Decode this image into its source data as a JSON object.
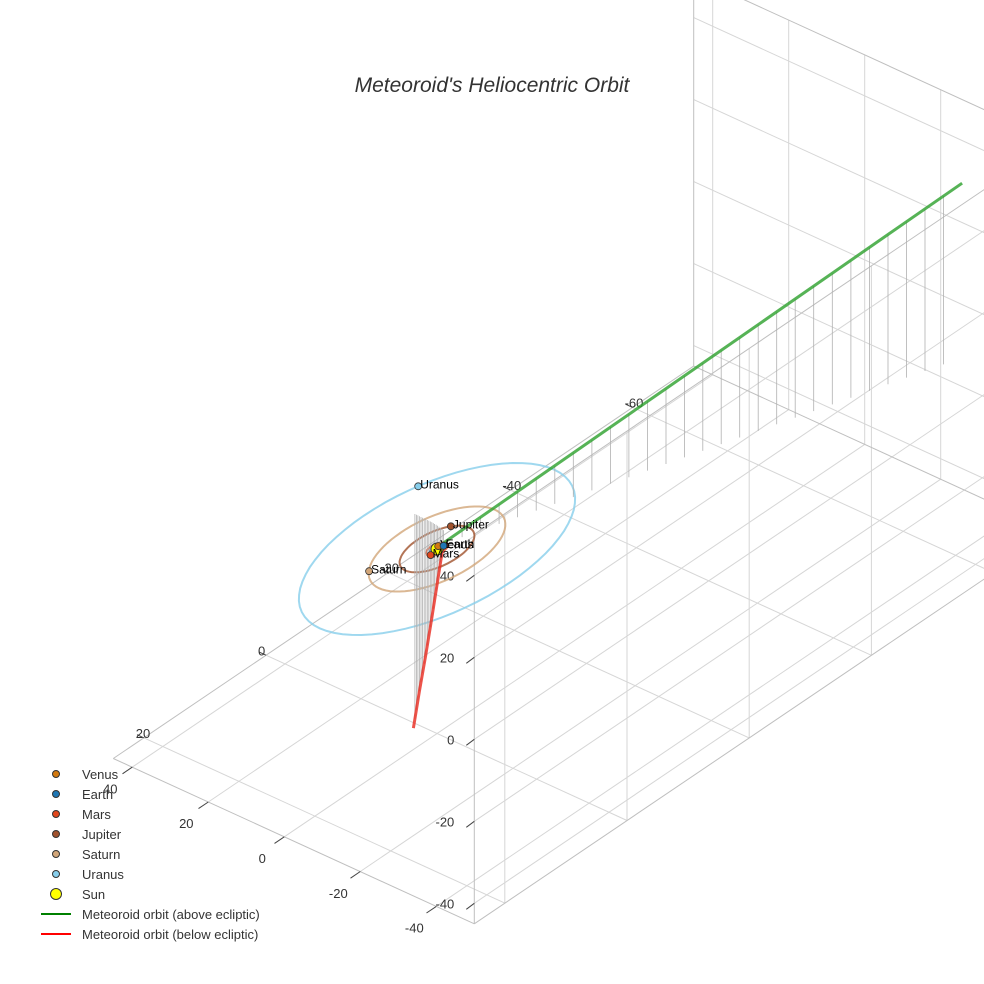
{
  "chart_data": {
    "type": "scatter3d",
    "title": "Meteoroid's Heliocentric Orbit",
    "axes": {
      "x": {
        "ticks": [
          -40,
          -20,
          0,
          20,
          40
        ],
        "range": [
          -50,
          45
        ]
      },
      "y": {
        "ticks": [
          -60,
          -40,
          -20,
          0,
          20
        ],
        "range": [
          -70,
          25
        ]
      },
      "z": {
        "ticks": [
          -40,
          -20,
          0,
          20,
          40
        ],
        "range": [
          -45,
          50
        ]
      },
      "grid": true
    },
    "planets": [
      {
        "name": "Venus",
        "color": "#D2790F",
        "radius_au": 0.72,
        "pos": [
          0.5,
          -0.5,
          0
        ],
        "labeled": true
      },
      {
        "name": "Earth",
        "color": "#1F77B4",
        "radius_au": 1.0,
        "pos": [
          -0.3,
          -0.9,
          0
        ],
        "labeled": true
      },
      {
        "name": "Mars",
        "color": "#E0471C",
        "radius_au": 1.52,
        "pos": [
          -0.4,
          1.3,
          0
        ],
        "labeled": true
      },
      {
        "name": "Jupiter",
        "color": "#A0522D",
        "radius_au": 5.2,
        "pos": [
          3.1,
          -4.2,
          0
        ],
        "labeled": true
      },
      {
        "name": "Saturn",
        "color": "#D2A679",
        "radius_au": 9.5,
        "pos": [
          5.5,
          7.7,
          0
        ],
        "labeled": true
      },
      {
        "name": "Uranus",
        "color": "#87CEEB",
        "radius_au": 19.2,
        "pos": [
          17.5,
          -7.8,
          0
        ],
        "labeled": true
      }
    ],
    "sun": {
      "name": "Sun",
      "color": "#FFFF00",
      "pos": [
        0,
        0,
        0
      ]
    },
    "meteoroid_above": {
      "name": "Meteoroid orbit (above ecliptic)",
      "color": "#2CA02C",
      "x": [
        0.2,
        -5.3,
        -10.7,
        -16.2,
        -21.6,
        -27.1,
        -32.5,
        -38.0
      ],
      "y": [
        -1.2,
        -9.9,
        -18.7,
        -27.4,
        -36.1,
        -44.8,
        -53.6,
        -62.3
      ],
      "z": [
        0.2,
        6.3,
        12.3,
        18.4,
        24.4,
        30.5,
        36.5,
        42.6
      ]
    },
    "meteoroid_below": {
      "name": "Meteoroid orbit (below ecliptic)",
      "color": "#E8291E",
      "x": [
        0.2,
        -5.6,
        -11.0,
        -16.5,
        -21.9,
        -27.4
      ],
      "y": [
        -1.2,
        3.4,
        7.7,
        12.1,
        16.5,
        20.9
      ],
      "z": [
        0.2,
        -2.2,
        -4.4,
        -6.6,
        -8.8,
        -11.0
      ]
    }
  },
  "legend": {
    "items": [
      {
        "label": "Venus",
        "kind": "dot",
        "color": "#D2790F",
        "size": "small"
      },
      {
        "label": "Earth",
        "kind": "dot",
        "color": "#1F77B4",
        "size": "small"
      },
      {
        "label": "Mars",
        "kind": "dot",
        "color": "#E0471C",
        "size": "small"
      },
      {
        "label": "Jupiter",
        "kind": "dot",
        "color": "#A0522D",
        "size": "small"
      },
      {
        "label": "Saturn",
        "kind": "dot",
        "color": "#D2A679",
        "size": "small"
      },
      {
        "label": "Uranus",
        "kind": "dot",
        "color": "#87CEEB",
        "size": "small"
      },
      {
        "label": "Sun",
        "kind": "dot",
        "color": "#FFFF00",
        "size": "large"
      },
      {
        "label": "Meteoroid orbit (above ecliptic)",
        "kind": "line",
        "color": "#008000"
      },
      {
        "label": "Meteoroid orbit (below ecliptic)",
        "kind": "line",
        "color": "#FF0000"
      }
    ]
  }
}
